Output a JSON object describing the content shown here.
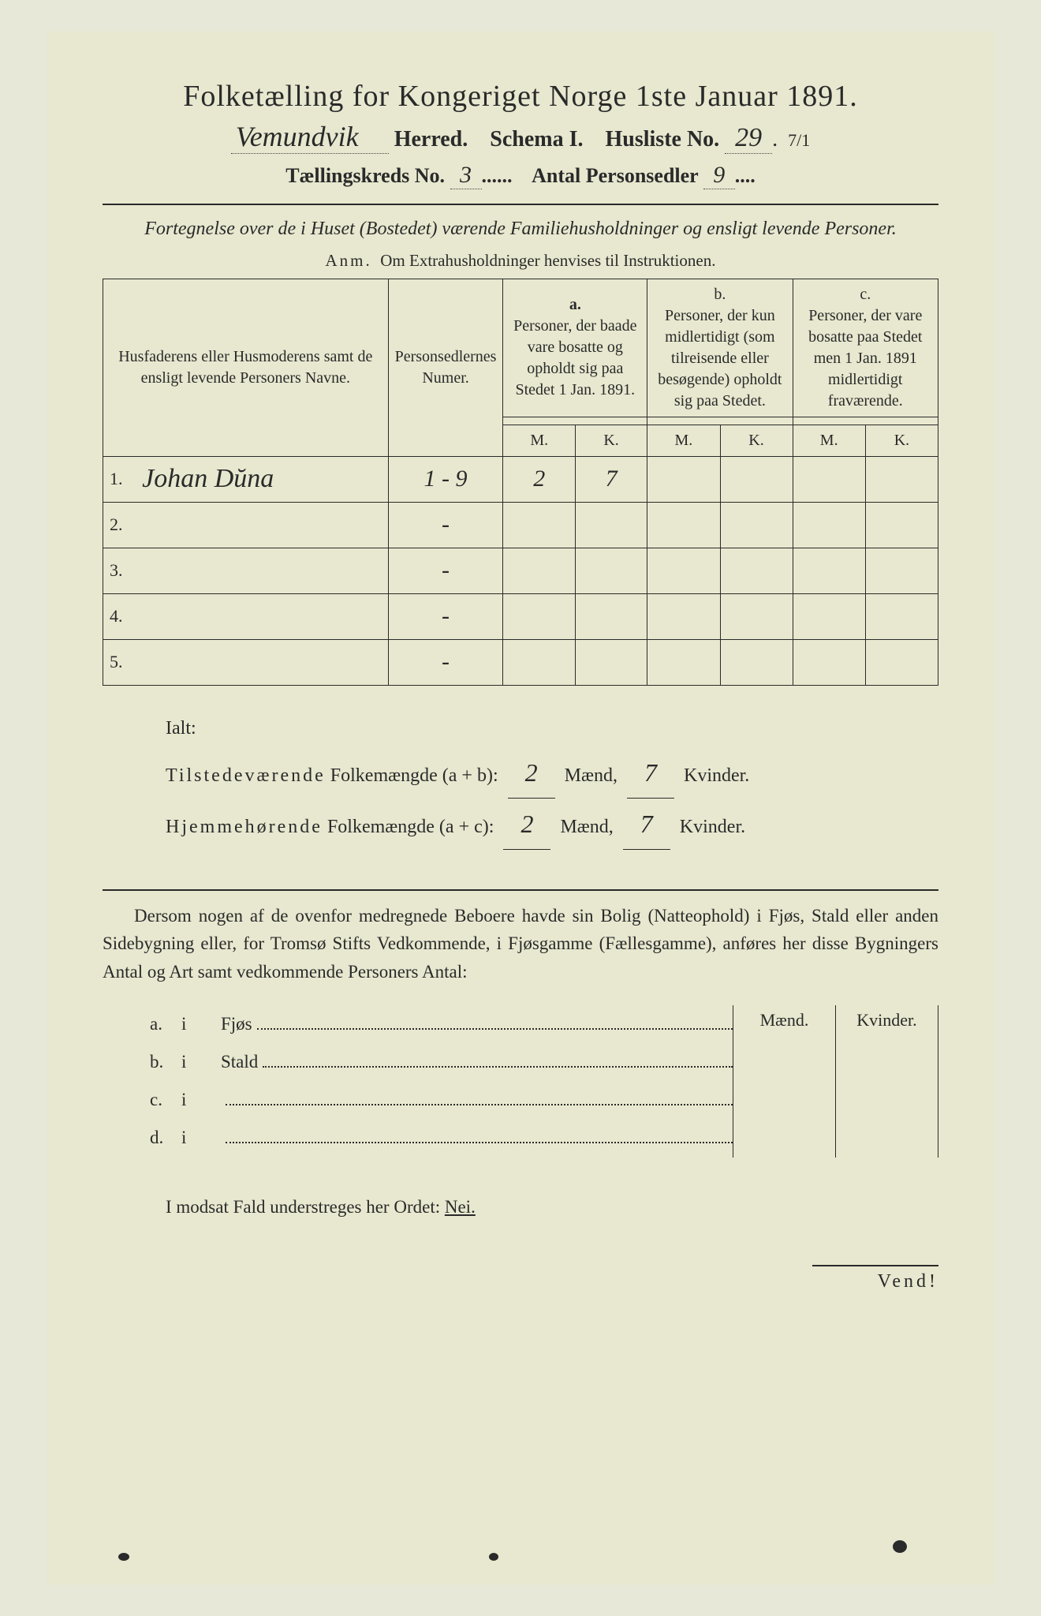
{
  "header": {
    "title": "Folketælling for Kongeriget Norge 1ste Januar 1891.",
    "herred_value": "Vemundvik",
    "herred_label": "Herred.",
    "schema_label": "Schema I.",
    "husliste_label": "Husliste No.",
    "husliste_value": "29",
    "husliste_frac": "7/1",
    "kreds_label": "Tællingskreds No.",
    "kreds_value": "3",
    "antal_label": "Antal Personsedler",
    "antal_value": "9"
  },
  "subtitle": "Fortegnelse over de i Huset (Bostedet) værende Familiehusholdninger og ensligt levende Personer.",
  "anm_label": "Anm.",
  "anm_text": "Om Extrahusholdninger henvises til Instruktionen.",
  "table": {
    "col_name": "Husfaderens eller Husmoderens samt de ensligt levende Personers Navne.",
    "col_num": "Personsedlernes Numer.",
    "col_a_head": "a.",
    "col_a": "Personer, der baade vare bosatte og opholdt sig paa Stedet 1 Jan. 1891.",
    "col_b_head": "b.",
    "col_b": "Personer, der kun midlertidigt (som tilreisende eller besøgende) opholdt sig paa Stedet.",
    "col_c_head": "c.",
    "col_c": "Personer, der vare bosatte paa Stedet men 1 Jan. 1891 midlertidigt fraværende.",
    "m": "M.",
    "k": "K.",
    "rows": [
      {
        "n": "1.",
        "name": "Johan Dŭna",
        "num": "1 - 9",
        "am": "2",
        "ak": "7",
        "bm": "",
        "bk": "",
        "cm": "",
        "ck": ""
      },
      {
        "n": "2.",
        "name": "",
        "num": "-",
        "am": "",
        "ak": "",
        "bm": "",
        "bk": "",
        "cm": "",
        "ck": ""
      },
      {
        "n": "3.",
        "name": "",
        "num": "-",
        "am": "",
        "ak": "",
        "bm": "",
        "bk": "",
        "cm": "",
        "ck": ""
      },
      {
        "n": "4.",
        "name": "",
        "num": "-",
        "am": "",
        "ak": "",
        "bm": "",
        "bk": "",
        "cm": "",
        "ck": ""
      },
      {
        "n": "5.",
        "name": "",
        "num": "-",
        "am": "",
        "ak": "",
        "bm": "",
        "bk": "",
        "cm": "",
        "ck": ""
      }
    ]
  },
  "ialt": {
    "heading": "Ialt:",
    "line1_a": "Tilstedeværende",
    "line1_b": "Folkemængde (a + b):",
    "line1_m": "2",
    "line1_k": "7",
    "maend": "Mænd,",
    "kvinder": "Kvinder.",
    "line2_a": "Hjemmehørende",
    "line2_b": "Folkemængde (a + c):",
    "line2_m": "2",
    "line2_k": "7"
  },
  "dersom": "Dersom nogen af de ovenfor medregnede Beboere havde sin Bolig (Natteophold) i Fjøs, Stald eller anden Sidebygning eller, for Tromsø Stifts Vedkommende, i Fjøsgamme (Fællesgamme), anføres her disse Bygningers Antal og Art samt vedkommende Personers Antal:",
  "fjøs": {
    "maend": "Mænd.",
    "kvinder": "Kvinder.",
    "rows": [
      {
        "l": "a.",
        "i": "i",
        "t": "Fjøs"
      },
      {
        "l": "b.",
        "i": "i",
        "t": "Stald"
      },
      {
        "l": "c.",
        "i": "i",
        "t": ""
      },
      {
        "l": "d.",
        "i": "i",
        "t": ""
      }
    ]
  },
  "modsat": "I modsat Fald understreges her Ordet:",
  "nei": "Nei.",
  "vend": "Vend!",
  "styling": {
    "page_bg": "#e8e8d0",
    "text_color": "#2a2a2a",
    "handwriting_font": "Brush Script MT, cursive",
    "print_font": "Georgia, Times New Roman, serif",
    "border_color": "#2a2a2a"
  }
}
